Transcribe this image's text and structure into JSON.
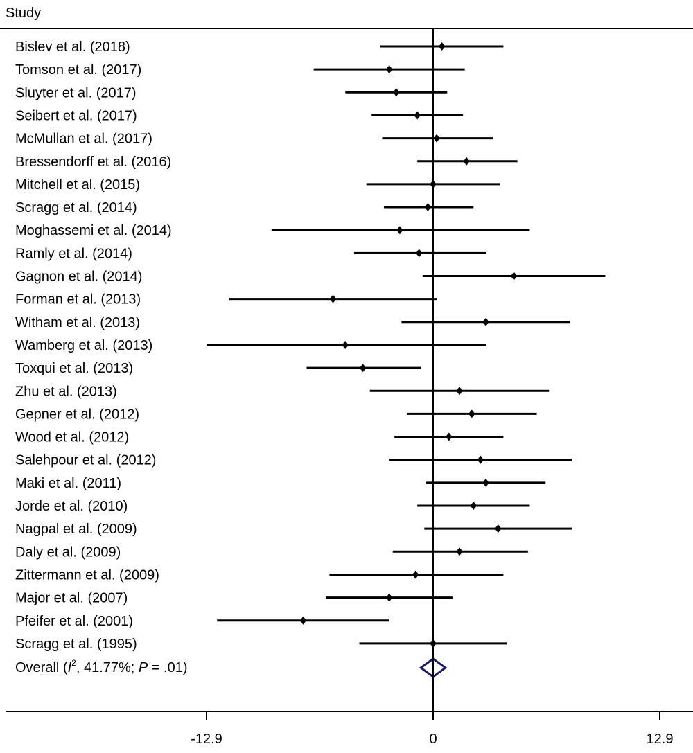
{
  "chart_data": {
    "type": "forest",
    "column_header": "Study",
    "xlim": [
      -12.9,
      12.9
    ],
    "x_ticks": [
      -12.9,
      0,
      12.9
    ],
    "x_tick_labels": [
      "-12.9",
      "0",
      "12.9"
    ],
    "reference_line": 0,
    "grid": false,
    "colors": {
      "study": "#000000",
      "overall": "#1a1a6e"
    },
    "studies": [
      {
        "label": "Bislev et al. (2018)",
        "estimate": 0.5,
        "lower": -3.0,
        "upper": 4.0
      },
      {
        "label": "Tomson et al. (2017)",
        "estimate": -2.5,
        "lower": -6.8,
        "upper": 1.8
      },
      {
        "label": "Sluyter et al. (2017)",
        "estimate": -2.1,
        "lower": -5.0,
        "upper": 0.8
      },
      {
        "label": "Seibert et al. (2017)",
        "estimate": -0.9,
        "lower": -3.5,
        "upper": 1.7
      },
      {
        "label": "McMullan et al. (2017)",
        "estimate": 0.2,
        "lower": -2.9,
        "upper": 3.4
      },
      {
        "label": "Bressendorff et al. (2016)",
        "estimate": 1.9,
        "lower": -0.9,
        "upper": 4.8
      },
      {
        "label": "Mitchell et al. (2015)",
        "estimate": 0.0,
        "lower": -3.8,
        "upper": 3.8
      },
      {
        "label": "Scragg et al. (2014)",
        "estimate": -0.3,
        "lower": -2.8,
        "upper": 2.3
      },
      {
        "label": "Moghassemi et al. (2014)",
        "estimate": -1.9,
        "lower": -9.2,
        "upper": 5.5
      },
      {
        "label": "Ramly et al. (2014)",
        "estimate": -0.8,
        "lower": -4.5,
        "upper": 3.0
      },
      {
        "label": "Gagnon et al. (2014)",
        "estimate": 4.6,
        "lower": -0.6,
        "upper": 9.8
      },
      {
        "label": "Forman et al. (2013)",
        "estimate": -5.7,
        "lower": -11.6,
        "upper": 0.2
      },
      {
        "label": "Witham et al. (2013)",
        "estimate": 3.0,
        "lower": -1.8,
        "upper": 7.8
      },
      {
        "label": "Wamberg et al. (2013)",
        "estimate": -5.0,
        "lower": -12.9,
        "upper": 3.0
      },
      {
        "label": "Toxqui et al. (2013)",
        "estimate": -4.0,
        "lower": -7.2,
        "upper": -0.7
      },
      {
        "label": "Zhu et al. (2013)",
        "estimate": 1.5,
        "lower": -3.6,
        "upper": 6.6
      },
      {
        "label": "Gepner et al. (2012)",
        "estimate": 2.2,
        "lower": -1.5,
        "upper": 5.9
      },
      {
        "label": "Wood et al. (2012)",
        "estimate": 0.9,
        "lower": -2.2,
        "upper": 4.0
      },
      {
        "label": "Salehpour et al. (2012)",
        "estimate": 2.7,
        "lower": -2.5,
        "upper": 7.9
      },
      {
        "label": "Maki et al. (2011)",
        "estimate": 3.0,
        "lower": -0.4,
        "upper": 6.4
      },
      {
        "label": "Jorde et al. (2010)",
        "estimate": 2.3,
        "lower": -0.9,
        "upper": 5.5
      },
      {
        "label": "Nagpal et al. (2009)",
        "estimate": 3.7,
        "lower": -0.5,
        "upper": 7.9
      },
      {
        "label": "Daly et al. (2009)",
        "estimate": 1.5,
        "lower": -2.3,
        "upper": 5.4
      },
      {
        "label": "Zittermann et al. (2009)",
        "estimate": -1.0,
        "lower": -5.9,
        "upper": 4.0
      },
      {
        "label": "Major et al. (2007)",
        "estimate": -2.5,
        "lower": -6.1,
        "upper": 1.1
      },
      {
        "label": "Pfeifer et al. (2001)",
        "estimate": -7.4,
        "lower": -12.3,
        "upper": -2.5
      },
      {
        "label": "Scragg et al. (1995)",
        "estimate": 0.0,
        "lower": -4.2,
        "upper": 4.2
      }
    ],
    "overall": {
      "label_prefix": "Overall (",
      "label_i": "I",
      "label_sup": "2",
      "label_mid": ", 41.77%; ",
      "label_p": "P",
      "label_suffix": " = .01)",
      "estimate": 0.0,
      "lower": -0.7,
      "upper": 0.7
    }
  }
}
